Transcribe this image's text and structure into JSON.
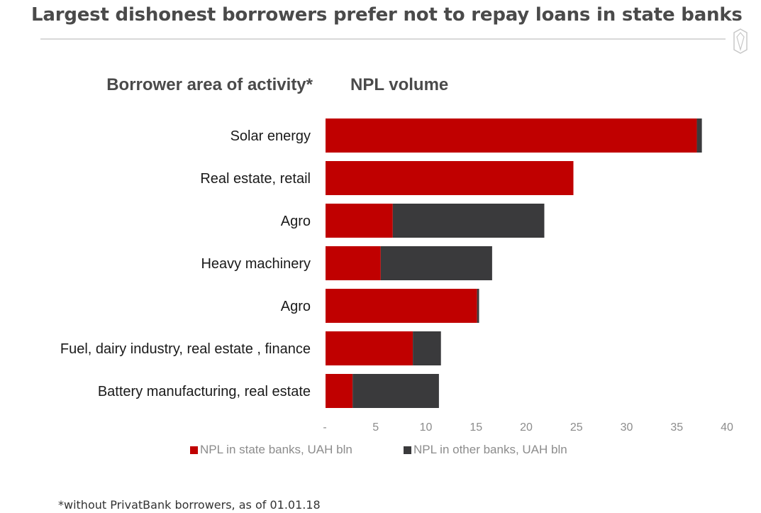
{
  "page": {
    "title": "Largest dishonest borrowers prefer not to repay loans in state banks",
    "footnote": "*without PrivatBank borrowers, as of  01.01.18"
  },
  "chart_data": {
    "type": "bar",
    "orientation": "horizontal",
    "stacked": true,
    "category_header": "Borrower area of activity*",
    "value_header": "NPL volume",
    "categories": [
      "Solar energy",
      "Real estate, retail",
      "Agro",
      "Heavy machinery",
      "Agro",
      "Fuel, dairy industry, real estate , finance",
      "Battery manufacturing, real estate"
    ],
    "series": [
      {
        "name": "NPL in state banks,  UAH bln",
        "color": "#c00000",
        "values": [
          37.0,
          24.7,
          6.7,
          5.5,
          15.1,
          8.7,
          2.7
        ]
      },
      {
        "name": "NPL in other banks, UAH bln",
        "color": "#3a3a3c",
        "values": [
          0.5,
          0.0,
          15.1,
          11.1,
          0.2,
          2.8,
          8.6
        ]
      }
    ],
    "xlim": [
      0,
      40
    ],
    "xticks": [
      "-",
      "5",
      "10",
      "15",
      "20",
      "25",
      "30",
      "35",
      "40"
    ],
    "grid": false,
    "legend": "bottom"
  }
}
